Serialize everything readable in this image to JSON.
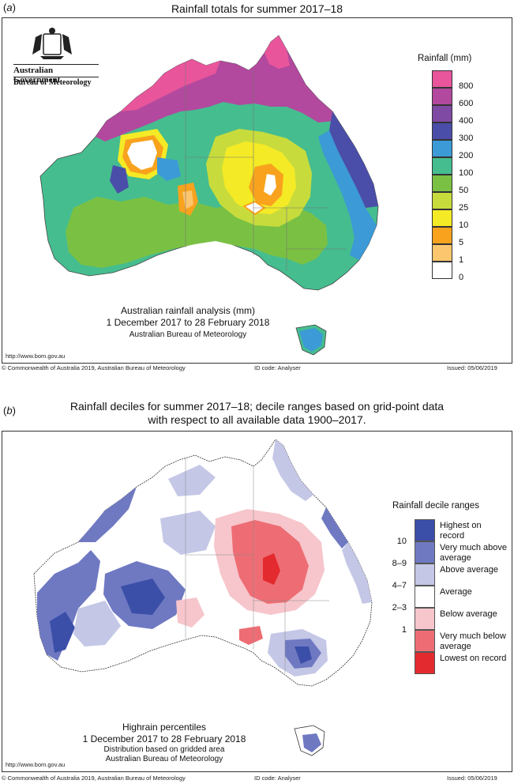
{
  "panel_a": {
    "label_letter": "a",
    "title": "Rainfall totals for summer 2017–18",
    "logo": {
      "line1": "Australian Government",
      "line2": "Bureau of Meteorology"
    },
    "legend_title": "Rainfall (mm)",
    "legend": [
      {
        "value": "800",
        "color": "#e8559b"
      },
      {
        "value": "600",
        "color": "#b2499e"
      },
      {
        "value": "400",
        "color": "#7f4aa3"
      },
      {
        "value": "300",
        "color": "#4a4ea8"
      },
      {
        "value": "200",
        "color": "#3c9ad6"
      },
      {
        "value": "100",
        "color": "#45bd8f"
      },
      {
        "value": "50",
        "color": "#7ac143"
      },
      {
        "value": "25",
        "color": "#c7dc3c"
      },
      {
        "value": "10",
        "color": "#f4ea26"
      },
      {
        "value": "5",
        "color": "#f8a21d"
      },
      {
        "value": "1",
        "color": "#fbc66e"
      },
      {
        "value": "0",
        "color": "#ffffff"
      }
    ],
    "caption_line1": "Australian rainfall analysis (mm)",
    "caption_line2": "1 December 2017 to 28 February 2018",
    "caption_line3": "Australian Bureau of Meteorology",
    "url": "http://www.bom.gov.au",
    "footer_left": "© Commonwealth of Australia 2019, Australian Bureau of Meteorology",
    "footer_mid": "ID code: Analyser",
    "footer_right": "Issued: 05/06/2019"
  },
  "panel_b": {
    "label_letter": "b",
    "title_line1": "Rainfall deciles for summer 2017–18; decile ranges based on grid-point data",
    "title_line2": "with respect to all available data 1900–2017.",
    "legend_title": "Rainfall decile ranges",
    "legend": [
      {
        "num": "",
        "label": "Highest on record",
        "color": "#3b4fa8"
      },
      {
        "num": "10",
        "label": "Very much above average",
        "color": "#6f79c2"
      },
      {
        "num": "8–9",
        "label": "Above average",
        "color": "#c4c7e6"
      },
      {
        "num": "4–7",
        "label": "Average",
        "color": "#ffffff"
      },
      {
        "num": "2–3",
        "label": "Below average",
        "color": "#f6c6cc"
      },
      {
        "num": "1",
        "label": "Very much below average",
        "color": "#ee6d74"
      },
      {
        "num": "",
        "label": "Lowest on record",
        "color": "#e32a2f"
      }
    ],
    "caption_line1": "Highrain percentiles",
    "caption_line2": "1 December 2017 to 28 February 2018",
    "caption_line3": "Distribution based on gridded area",
    "caption_line4": "Australian Bureau of Meteorology",
    "url": "http://www.bom.gov.au",
    "footer_left": "© Commonwealth of Australia 2019, Australian Bureau of Meteorology",
    "footer_mid": "ID code: Analyser",
    "footer_right": "Issued: 05/06/2019"
  }
}
